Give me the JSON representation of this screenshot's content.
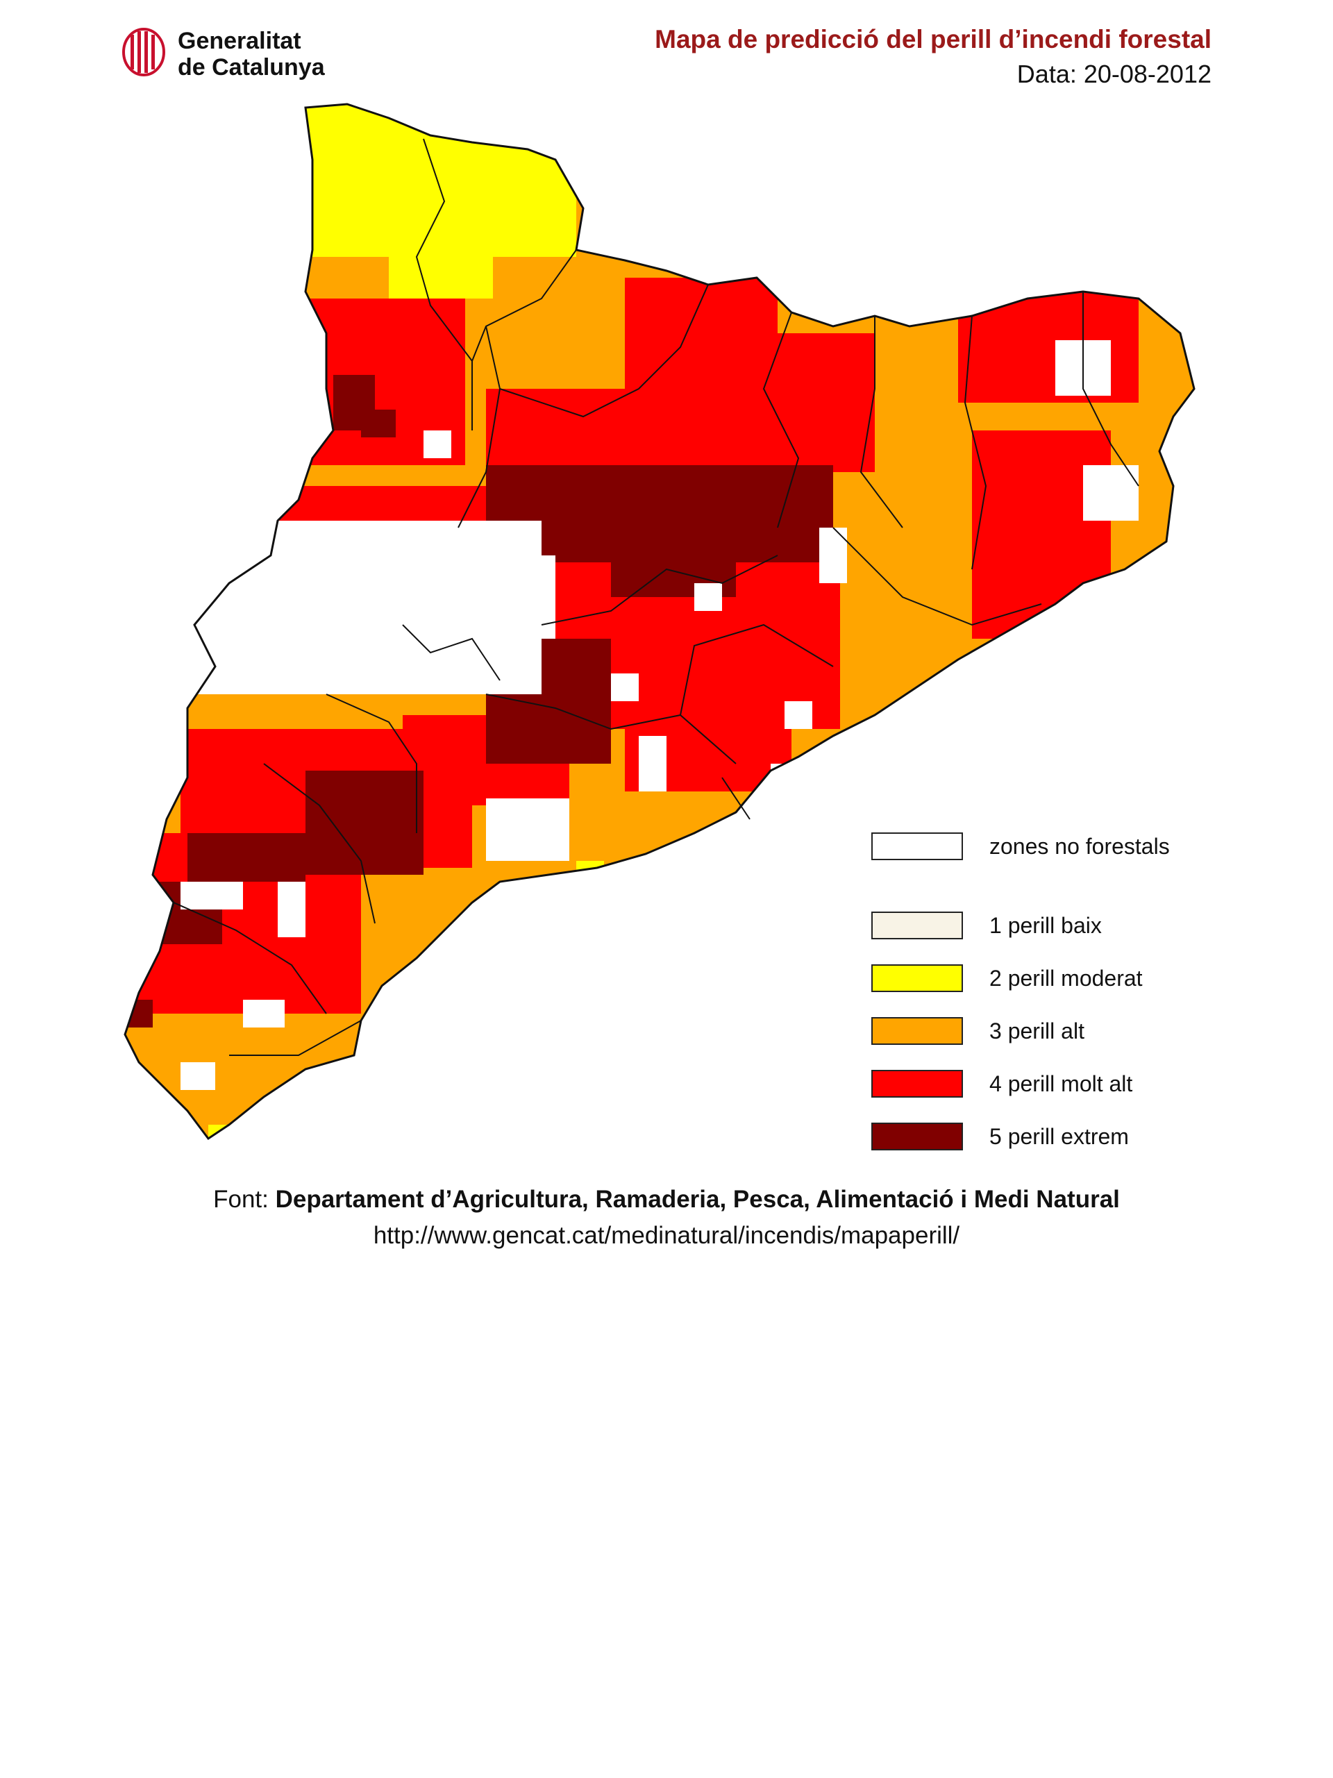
{
  "header": {
    "logo_line1": "Generalitat",
    "logo_line2": "de Catalunya",
    "title": "Mapa de predicció del perill d’incendi forestal",
    "date": "Data: 20-08-2012"
  },
  "colors": {
    "title": "#9b1a1a",
    "logo": "#c8102e",
    "outline": "#111111"
  },
  "legend": [
    {
      "label": "zones no forestals",
      "color": "#ffffff"
    },
    {
      "label": "1  perill baix",
      "color": "#f8f3e6"
    },
    {
      "label": "2  perill moderat",
      "color": "#ffff00"
    },
    {
      "label": "3  perill alt",
      "color": "#ffa500"
    },
    {
      "label": "4  perill molt alt",
      "color": "#ff0000"
    },
    {
      "label": "5  perill extrem",
      "color": "#800000"
    }
  ],
  "map": {
    "region": "Catalunya",
    "danger_levels_shown": [
      2,
      3,
      4,
      5
    ]
  },
  "footer": {
    "source_prefix": "Font: ",
    "source_name": "Departament d’Agricultura, Ramaderia, Pesca, Alimentació i Medi Natural",
    "url": "http://www.gencat.cat/medinatural/incendis/mapaperill/"
  }
}
